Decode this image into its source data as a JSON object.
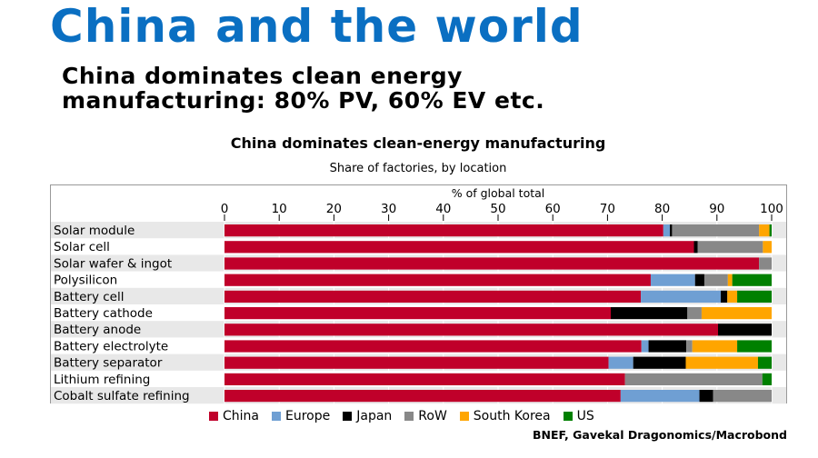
{
  "title": "China and the world",
  "subtitle_line1": "China dominates clean energy",
  "subtitle_line2": "manufacturing: 80% PV, 60% EV etc.",
  "source": "BNEF, Gavekal Dragonomics/Macrobond",
  "chart_data": {
    "type": "bar",
    "orientation": "horizontal-stacked",
    "title": "China dominates clean-energy manufacturing",
    "subtitle": "Share of factories, by location",
    "xlabel": "% of global total",
    "xlim": [
      0,
      100
    ],
    "xticks": [
      0,
      10,
      20,
      30,
      40,
      50,
      60,
      70,
      80,
      90,
      100
    ],
    "legend_position": "bottom",
    "categories": [
      "Solar module",
      "Solar cell",
      "Solar wafer & ingot",
      "Polysilicon",
      "Battery cell",
      "Battery cathode",
      "Battery anode",
      "Battery electrolyte",
      "Battery separator",
      "Lithium refining",
      "Cobalt sulfate refining"
    ],
    "series": [
      {
        "name": "China",
        "color": "#c0002a",
        "values": [
          80.2,
          85.8,
          97.7,
          77.9,
          76.1,
          70.6,
          90.2,
          76.2,
          70.2,
          73.2,
          72.4
        ]
      },
      {
        "name": "Europe",
        "color": "#6f9fd3",
        "values": [
          1.2,
          0,
          0,
          8.1,
          14.6,
          0,
          0,
          1.3,
          4.5,
          0,
          14.4
        ]
      },
      {
        "name": "Japan",
        "color": "#000000",
        "values": [
          0.4,
          0.7,
          0,
          1.7,
          1.2,
          14.0,
          9.8,
          6.9,
          9.6,
          0,
          2.5
        ]
      },
      {
        "name": "RoW",
        "color": "#888888",
        "values": [
          15.9,
          11.9,
          2.3,
          4.3,
          0,
          2.6,
          0,
          1.1,
          0,
          25.1,
          10.7
        ]
      },
      {
        "name": "South Korea",
        "color": "#ffa500",
        "values": [
          1.9,
          1.6,
          0,
          0.8,
          1.8,
          12.8,
          0,
          8.2,
          13.2,
          0,
          0
        ]
      },
      {
        "name": "US",
        "color": "#008000",
        "values": [
          0.4,
          0,
          0,
          7.2,
          6.3,
          0,
          0,
          6.3,
          2.5,
          1.7,
          0
        ]
      }
    ]
  }
}
